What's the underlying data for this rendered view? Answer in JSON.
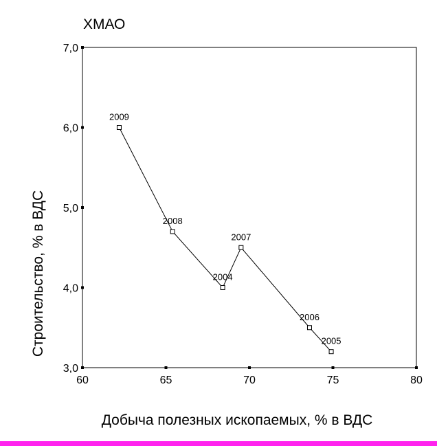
{
  "chart_data": {
    "type": "line",
    "title": "ХМАО",
    "xlabel": "Добыча полезных ископаемых, % в ВДС",
    "ylabel": "Строительство, % в ВДС",
    "xlim": [
      60,
      80
    ],
    "ylim": [
      3.0,
      7.0
    ],
    "x_ticks": [
      60,
      65,
      70,
      75,
      80
    ],
    "x_tick_labels": [
      "60",
      "65",
      "70",
      "75",
      "80"
    ],
    "y_ticks": [
      3.0,
      4.0,
      5.0,
      6.0,
      7.0
    ],
    "y_tick_labels": [
      "3,0",
      "4,0",
      "5,0",
      "6,0",
      "7,0"
    ],
    "grid": false,
    "marker": "square",
    "series": [
      {
        "points": [
          {
            "label": "2009",
            "x": 62.2,
            "y": 6.0
          },
          {
            "label": "2008",
            "x": 65.4,
            "y": 4.7
          },
          {
            "label": "2004",
            "x": 68.4,
            "y": 4.0
          },
          {
            "label": "2007",
            "x": 69.5,
            "y": 4.5
          },
          {
            "label": "2006",
            "x": 73.6,
            "y": 3.5
          },
          {
            "label": "2005",
            "x": 74.9,
            "y": 3.2
          }
        ]
      }
    ]
  },
  "colors": {
    "line": "#000000",
    "bottom_bar": "#ff22ee"
  }
}
